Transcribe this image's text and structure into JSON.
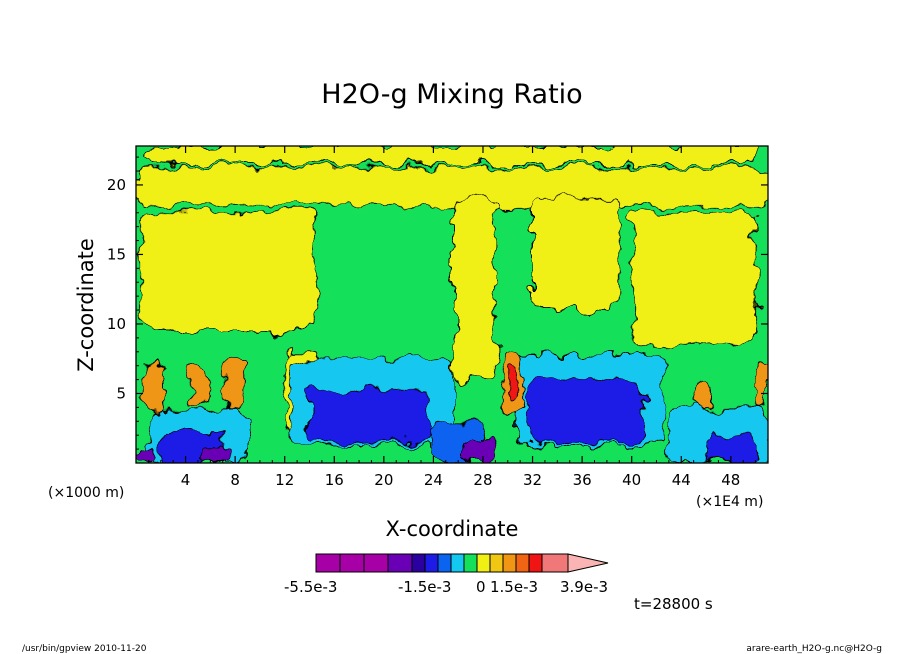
{
  "chart_data": {
    "type": "heatmap",
    "title": "H2O-g Mixing Ratio",
    "xlabel": "X-coordinate",
    "ylabel": "Z-coordinate",
    "x_unit": "(×1000 m)",
    "x_unit_alt": "(×1E4 m)",
    "xlim": [
      0,
      51
    ],
    "ylim": [
      0,
      22.8
    ],
    "x_ticks": [
      4,
      8,
      12,
      16,
      20,
      24,
      28,
      32,
      36,
      40,
      44,
      48
    ],
    "y_ticks": [
      5,
      10,
      15,
      20
    ],
    "colorbar": {
      "colors": [
        "#a600a6",
        "#a600a6",
        "#a600a6",
        "#6a00b5",
        "#2a00a0",
        "#1c1ce6",
        "#0a64f0",
        "#14c8f0",
        "#14e05a",
        "#f0f014",
        "#f0c814",
        "#f09614",
        "#f06414",
        "#f01414",
        "#f07878",
        "#fab4b4"
      ],
      "tick_labels": [
        "-5.5e-3",
        "-1.5e-3",
        "0",
        "1.5e-3",
        "3.9e-3"
      ]
    },
    "time_label": "t=28800 s"
  },
  "footer": {
    "left": "/usr/bin/gpview  2010-11-20",
    "right": "arare-earth_H2O-g.nc@H2O-g"
  }
}
